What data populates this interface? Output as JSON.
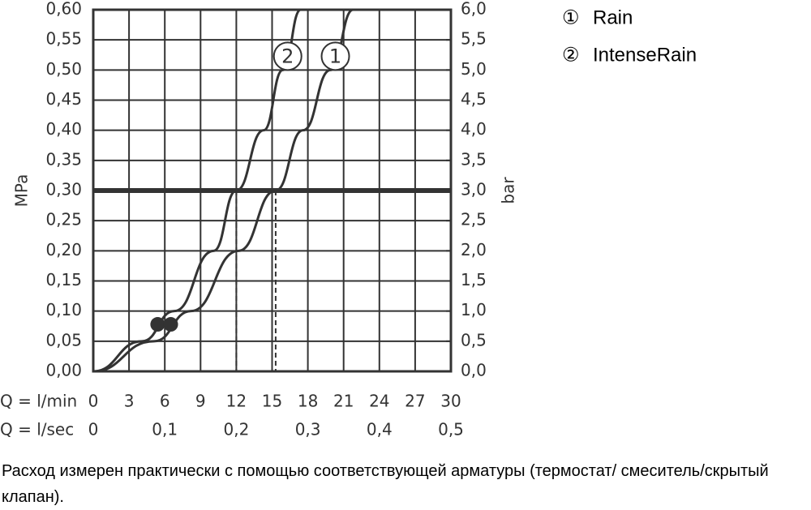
{
  "chart_data": {
    "type": "line",
    "y_label": "MPa",
    "y2_label": "bar",
    "x_label": "Q = l/min",
    "x2_label": "Q = l/sec",
    "xlim": [
      0,
      30
    ],
    "xticks": [
      0,
      3,
      6,
      9,
      12,
      15,
      18,
      21,
      24,
      27,
      30
    ],
    "x2lim": [
      0,
      0.5
    ],
    "x2ticks": [
      0,
      {
        "value": 0.1,
        "label": "0,1"
      },
      {
        "value": 0.2,
        "label": "0,2"
      },
      {
        "value": 0.3,
        "label": "0,3"
      },
      {
        "value": 0.4,
        "label": "0,4"
      },
      {
        "value": 0.5,
        "label": "0,5"
      }
    ],
    "ylim": [
      0,
      0.6
    ],
    "yticks": [
      {
        "value": 0,
        "label": "0,00"
      },
      {
        "value": 0.05,
        "label": "0,05"
      },
      {
        "value": 0.1,
        "label": "0,10"
      },
      {
        "value": 0.15,
        "label": "0,15"
      },
      {
        "value": 0.2,
        "label": "0,20"
      },
      {
        "value": 0.25,
        "label": "0,25"
      },
      {
        "value": 0.3,
        "label": "0,30"
      },
      {
        "value": 0.35,
        "label": "0,35"
      },
      {
        "value": 0.4,
        "label": "0,40"
      },
      {
        "value": 0.45,
        "label": "0,45"
      },
      {
        "value": 0.5,
        "label": "0,50"
      },
      {
        "value": 0.55,
        "label": "0,55"
      },
      {
        "value": 0.6,
        "label": "0,60"
      }
    ],
    "y2lim": [
      0,
      6
    ],
    "y2ticks": [
      {
        "value": 0,
        "label": "0,0"
      },
      {
        "value": 0.5,
        "label": "0,5"
      },
      {
        "value": 1,
        "label": "1,0"
      },
      {
        "value": 1.5,
        "label": "1,5"
      },
      {
        "value": 2,
        "label": "2,0"
      },
      {
        "value": 2.5,
        "label": "2,5"
      },
      {
        "value": 3,
        "label": "3,0"
      },
      {
        "value": 3.5,
        "label": "3,5"
      },
      {
        "value": 4,
        "label": "4,0"
      },
      {
        "value": 4.5,
        "label": "4,5"
      },
      {
        "value": 5,
        "label": "5,0"
      },
      {
        "value": 5.5,
        "label": "5,5"
      },
      {
        "value": 6,
        "label": "6,0"
      }
    ],
    "grid": true,
    "color": "#333333",
    "reference_line": 0.3,
    "flow_at_reference": [
      12,
      15.3
    ],
    "operating_points": {
      "x": [
        5.4,
        6.5
      ],
      "values": [
        0.078,
        0.078
      ]
    },
    "series": [
      {
        "name": "Rain",
        "symbol": "①",
        "curve_label": "1",
        "color": "#333333",
        "x": [
          0,
          5.1,
          8.2,
          12.2,
          15.3,
          17.6,
          19.9,
          21.8
        ],
        "values": [
          0,
          0.05,
          0.1,
          0.2,
          0.3,
          0.4,
          0.5,
          0.6
        ]
      },
      {
        "name": "IntenseRain",
        "symbol": "②",
        "curve_label": "2",
        "color": "#333333",
        "x": [
          0,
          4.1,
          6.8,
          10.1,
          12,
          14.3,
          15.9,
          17.4
        ],
        "values": [
          0,
          0.05,
          0.1,
          0.2,
          0.3,
          0.4,
          0.5,
          0.6
        ]
      }
    ],
    "note": "Расход измерен практически с помощью соответствующей арматуры (термостат/ смеситель/скрытый клапан)."
  }
}
